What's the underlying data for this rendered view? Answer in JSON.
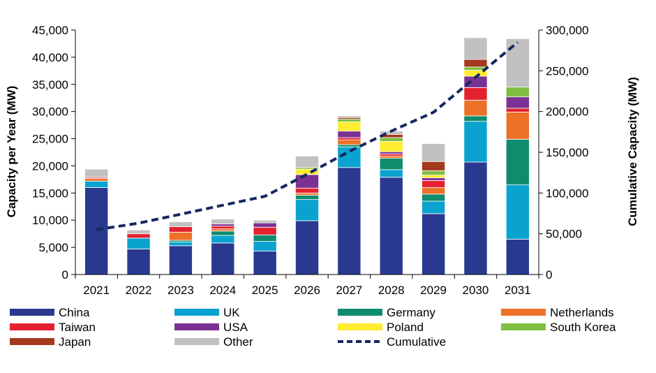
{
  "chart_data": {
    "type": "bar",
    "stacked": true,
    "title": "",
    "categories": [
      "2021",
      "2022",
      "2023",
      "2024",
      "2025",
      "2026",
      "2027",
      "2028",
      "2029",
      "2030",
      "2031"
    ],
    "ylabel": "Capacity per Year (MW)",
    "y2label": "Cumulative Capacity (MW)",
    "ylim": [
      0,
      45000
    ],
    "y2lim": [
      0,
      300000
    ],
    "yticks": [
      "0",
      "5,000",
      "10,000",
      "15,000",
      "20,000",
      "25,000",
      "30,000",
      "35,000",
      "40,000",
      "45,000"
    ],
    "y2ticks": [
      "0",
      "50,000",
      "100,000",
      "150,000",
      "200,000",
      "250,000",
      "300,000"
    ],
    "ytick_values": [
      0,
      5000,
      10000,
      15000,
      20000,
      25000,
      30000,
      35000,
      40000,
      45000
    ],
    "y2tick_values": [
      0,
      50000,
      100000,
      150000,
      200000,
      250000,
      300000
    ],
    "legend_position": "bottom",
    "series": [
      {
        "name": "China",
        "color": "#2a3990",
        "values": [
          16000,
          4700,
          5300,
          5800,
          4300,
          9900,
          19700,
          17900,
          11200,
          20700,
          6500
        ]
      },
      {
        "name": "UK",
        "color": "#0aa3cf",
        "values": [
          1200,
          2000,
          700,
          1400,
          1800,
          3900,
          3800,
          1400,
          2300,
          7500,
          10000
        ]
      },
      {
        "name": "Germany",
        "color": "#0f8c6e",
        "values": [
          0,
          0,
          300,
          800,
          1200,
          800,
          400,
          2100,
          1300,
          1000,
          8400
        ]
      },
      {
        "name": "Netherlands",
        "color": "#ee7128",
        "values": [
          500,
          0,
          1500,
          400,
          0,
          400,
          900,
          400,
          1200,
          2900,
          5000
        ]
      },
      {
        "name": "Taiwan",
        "color": "#e5212f",
        "values": [
          200,
          800,
          1000,
          500,
          1400,
          900,
          400,
          400,
          1300,
          2300,
          700
        ]
      },
      {
        "name": "USA",
        "color": "#7b3294",
        "values": [
          0,
          0,
          0,
          400,
          800,
          2500,
          1200,
          400,
          500,
          2100,
          2100
        ]
      },
      {
        "name": "Poland",
        "color": "#ffec2e",
        "values": [
          0,
          0,
          0,
          0,
          0,
          1000,
          1700,
          1900,
          500,
          1100,
          0
        ]
      },
      {
        "name": "South Korea",
        "color": "#7fbf3f",
        "values": [
          0,
          0,
          0,
          0,
          0,
          300,
          500,
          700,
          800,
          600,
          1800
        ]
      },
      {
        "name": "Japan",
        "color": "#a33a1e",
        "values": [
          0,
          0,
          0,
          0,
          0,
          0,
          300,
          600,
          1700,
          1400,
          0
        ]
      },
      {
        "name": "Other",
        "color": "#c1c1c1",
        "values": [
          1500,
          700,
          900,
          900,
          500,
          2100,
          300,
          600,
          3300,
          4000,
          8900
        ]
      }
    ],
    "line_series": {
      "name": "Cumulative",
      "color": "#13285e",
      "axis": "right",
      "values": [
        55000,
        63000,
        74000,
        85000,
        96000,
        123000,
        151000,
        176000,
        199000,
        242000,
        285000
      ]
    }
  }
}
